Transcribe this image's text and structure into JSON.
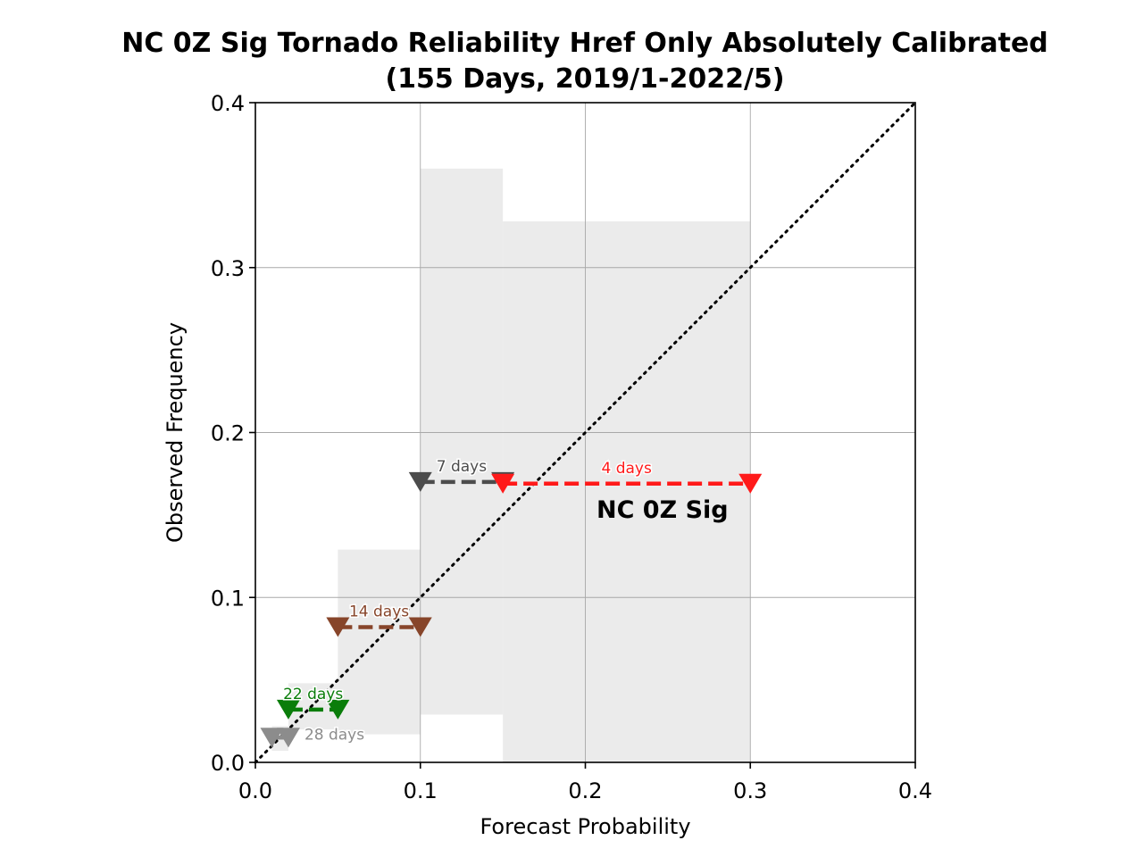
{
  "chart_data": {
    "type": "scatter",
    "title": "NC 0Z Sig Tornado Reliability Href Only Absolutely Calibrated",
    "subtitle": "(155 Days, 2019/1-2022/5)",
    "xlabel": "Forecast Probability",
    "ylabel": "Observed Frequency",
    "xlim": [
      0.0,
      0.4
    ],
    "ylim": [
      0.0,
      0.4
    ],
    "xticks": [
      "0.0",
      "0.1",
      "0.2",
      "0.3",
      "0.4"
    ],
    "yticks": [
      "0.0",
      "0.1",
      "0.2",
      "0.3",
      "0.4"
    ],
    "grid": true,
    "diagonal": "dotted y = x",
    "annotation": "NC 0Z Sig",
    "bins": [
      {
        "x0": 0.01,
        "x1": 0.02,
        "y": 0.015,
        "label": "28 days",
        "color": "#8c8c8c"
      },
      {
        "x0": 0.02,
        "x1": 0.05,
        "y": 0.032,
        "label": "22 days",
        "color": "#0a7d0a"
      },
      {
        "x0": 0.05,
        "x1": 0.1,
        "y": 0.082,
        "label": "14 days",
        "color": "#87452a"
      },
      {
        "x0": 0.1,
        "x1": 0.15,
        "y": 0.17,
        "label": "7 days",
        "color": "#4c4c4c"
      },
      {
        "x0": 0.15,
        "x1": 0.3,
        "y": 0.169,
        "label": "4 days",
        "color": "#ff1a1a"
      }
    ],
    "uncertainty_bands": [
      {
        "x0": 0.01,
        "x1": 0.02,
        "y0": 0.007,
        "y1": 0.022
      },
      {
        "x0": 0.02,
        "x1": 0.05,
        "y0": 0.02,
        "y1": 0.048
      },
      {
        "x0": 0.05,
        "x1": 0.1,
        "y0": 0.017,
        "y1": 0.129
      },
      {
        "x0": 0.1,
        "x1": 0.15,
        "y0": 0.029,
        "y1": 0.36
      },
      {
        "x0": 0.15,
        "x1": 0.3,
        "y0": 0.0,
        "y1": 0.328
      }
    ]
  }
}
